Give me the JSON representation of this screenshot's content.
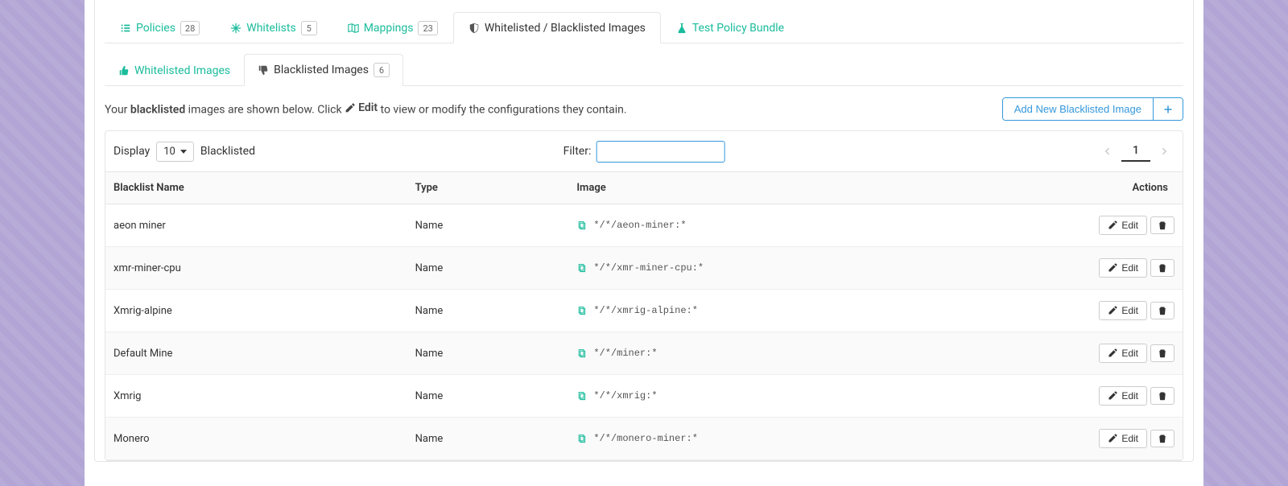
{
  "colors": {
    "accent_teal": "#1abc9c",
    "accent_blue": "#3498db",
    "border": "#e5e5e5",
    "bg_purple": "#b3a7d6"
  },
  "mainTabs": [
    {
      "label": "Policies",
      "count": "28"
    },
    {
      "label": "Whitelists",
      "count": "5"
    },
    {
      "label": "Mappings",
      "count": "23"
    },
    {
      "label": "Whitelisted / Blacklisted Images"
    },
    {
      "label": "Test Policy Bundle"
    }
  ],
  "subTabs": [
    {
      "label": "Whitelisted Images"
    },
    {
      "label": "Blacklisted Images",
      "count": "6"
    }
  ],
  "description": {
    "prefix": "Your ",
    "bold1": "blacklisted",
    "mid": " images are shown below. Click ",
    "editWord": "Edit",
    "suffix": " to view or modify the configurations they contain."
  },
  "addButton": {
    "label": "Add New Blacklisted Image"
  },
  "controls": {
    "displayLabel": "Display",
    "displayValue": "10",
    "displaySuffix": "Blacklisted",
    "filterLabel": "Filter:",
    "page": "1"
  },
  "columns": {
    "name": "Blacklist Name",
    "type": "Type",
    "image": "Image",
    "actions": "Actions"
  },
  "editLabel": "Edit",
  "rows": [
    {
      "name": "aeon miner",
      "type": "Name",
      "image": "*/*/aeon-miner:*"
    },
    {
      "name": "xmr-miner-cpu",
      "type": "Name",
      "image": "*/*/xmr-miner-cpu:*"
    },
    {
      "name": "Xmrig-alpine",
      "type": "Name",
      "image": "*/*/xmrig-alpine:*"
    },
    {
      "name": "Default Mine",
      "type": "Name",
      "image": "*/*/miner:*"
    },
    {
      "name": "Xmrig",
      "type": "Name",
      "image": "*/*/xmrig:*"
    },
    {
      "name": "Monero",
      "type": "Name",
      "image": "*/*/monero-miner:*"
    }
  ]
}
